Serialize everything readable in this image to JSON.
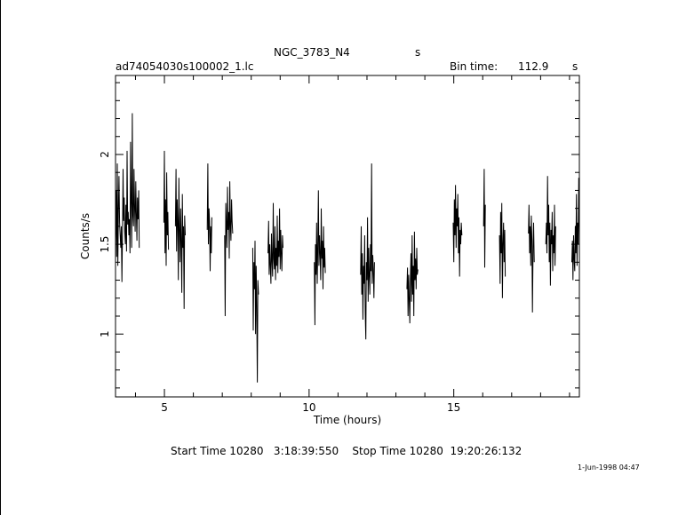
{
  "header": {
    "object_name": "NGC_3783_N4",
    "object_flag": "s",
    "file_name": "ad74054030s100002_1.lc",
    "bin_time_label": "Bin time:",
    "bin_time_value": "112.9",
    "bin_time_unit": "s"
  },
  "footer": {
    "time_range": "Start Time 10280   3:18:39:550    Stop Time 10280  19:20:26:132",
    "date_stamp": "1-Jun-1998 04:47"
  },
  "colors": {
    "line": "#000000",
    "background": "#ffffff"
  },
  "chart_data": {
    "type": "line",
    "title": "NGC_3783_N4",
    "xlabel": "Time (hours)",
    "ylabel": "Counts/s",
    "xlim": [
      3.31,
      19.34
    ],
    "ylim": [
      0.65,
      2.44
    ],
    "x_ticks": [
      5,
      10,
      15
    ],
    "y_ticks": [
      1,
      1.5,
      2
    ],
    "grid": false,
    "series": [
      {
        "segments": [
          {
            "x": [
              3.31,
              3.33,
              3.35,
              3.37,
              3.39,
              3.41,
              3.43,
              3.45,
              3.47,
              3.49,
              3.51,
              3.53,
              3.55,
              3.57,
              3.59,
              3.61,
              3.63,
              3.65,
              3.67,
              3.69,
              3.71,
              3.73,
              3.75,
              3.77,
              3.79,
              3.81,
              3.83,
              3.85,
              3.87,
              3.89,
              3.91,
              3.93,
              3.95,
              3.97,
              3.99,
              4.01,
              4.03,
              4.05,
              4.07,
              4.09,
              4.11,
              4.13
            ],
            "y": [
              1.52,
              1.8,
              1.43,
              1.95,
              1.38,
              1.7,
              1.88,
              1.62,
              1.55,
              1.48,
              1.6,
              1.29,
              1.55,
              1.92,
              1.63,
              1.76,
              1.57,
              1.5,
              1.72,
              1.46,
              2.02,
              1.61,
              1.68,
              1.55,
              1.64,
              1.45,
              2.07,
              1.72,
              1.48,
              2.23,
              1.66,
              1.6,
              1.92,
              1.7,
              1.57,
              1.85,
              1.68,
              1.52,
              1.76,
              1.64,
              1.8,
              1.48
            ]
          },
          {
            "x": [
              4.98,
              5.0,
              5.02,
              5.04,
              5.06,
              5.08,
              5.1,
              5.12,
              5.14
            ],
            "y": [
              1.62,
              2.02,
              1.45,
              1.75,
              1.38,
              1.9,
              1.55,
              1.68,
              1.47
            ]
          },
          {
            "x": [
              5.38,
              5.4,
              5.42,
              5.44,
              5.46,
              5.48,
              5.5,
              5.52,
              5.54,
              5.56,
              5.58,
              5.6,
              5.62,
              5.64,
              5.66,
              5.68,
              5.7,
              5.72
            ],
            "y": [
              1.6,
              1.92,
              1.46,
              1.75,
              1.63,
              1.3,
              1.87,
              1.58,
              1.4,
              1.7,
              1.52,
              1.23,
              1.78,
              1.48,
              1.6,
              1.14,
              1.66,
              1.55
            ]
          },
          {
            "x": [
              6.48,
              6.5,
              6.52,
              6.54,
              6.56,
              6.58,
              6.6,
              6.62,
              6.64
            ],
            "y": [
              1.58,
              1.95,
              1.5,
              1.7,
              1.63,
              1.35,
              1.6,
              1.45,
              1.65
            ]
          },
          {
            "x": [
              7.08,
              7.1,
              7.12,
              7.14,
              7.16,
              7.18,
              7.2,
              7.22,
              7.24,
              7.26,
              7.28,
              7.3,
              7.32,
              7.34,
              7.36
            ],
            "y": [
              1.55,
              1.1,
              1.73,
              1.62,
              1.48,
              1.82,
              1.58,
              1.68,
              1.42,
              1.85,
              1.6,
              1.52,
              1.75,
              1.63,
              1.56
            ]
          },
          {
            "x": [
              8.05,
              8.07,
              8.09,
              8.11,
              8.13,
              8.15,
              8.17,
              8.19,
              8.21,
              8.23,
              8.25
            ],
            "y": [
              1.48,
              1.02,
              1.4,
              1.25,
              1.52,
              1.0,
              1.38,
              1.15,
              0.73,
              1.3,
              1.22
            ]
          },
          {
            "x": [
              8.58,
              8.6,
              8.62,
              8.64,
              8.66,
              8.68,
              8.7,
              8.72,
              8.74,
              8.76,
              8.78,
              8.8,
              8.82,
              8.84,
              8.86,
              8.88,
              8.9,
              8.92,
              8.94,
              8.96,
              8.98,
              9.0,
              9.02,
              9.04,
              9.06,
              9.08,
              9.1
            ],
            "y": [
              1.45,
              1.63,
              1.33,
              1.5,
              1.38,
              1.28,
              1.56,
              1.4,
              1.32,
              1.73,
              1.42,
              1.36,
              1.6,
              1.3,
              1.48,
              1.38,
              1.66,
              1.34,
              1.52,
              1.43,
              1.7,
              1.36,
              1.58,
              1.44,
              1.35,
              1.55,
              1.48
            ]
          },
          {
            "x": [
              10.18,
              10.2,
              10.22,
              10.24,
              10.26,
              10.28,
              10.3,
              10.32,
              10.34,
              10.36,
              10.38,
              10.4,
              10.42,
              10.44,
              10.46,
              10.48,
              10.5,
              10.52,
              10.54,
              10.56
            ],
            "y": [
              1.4,
              1.05,
              1.5,
              1.33,
              1.62,
              1.28,
              1.48,
              1.8,
              1.38,
              1.55,
              1.45,
              1.3,
              1.7,
              1.42,
              1.52,
              1.25,
              1.6,
              1.37,
              1.48,
              1.34
            ]
          },
          {
            "x": [
              11.78,
              11.8,
              11.82,
              11.84,
              11.86,
              11.88,
              11.9,
              11.92,
              11.94,
              11.96,
              11.98,
              12.0,
              12.02,
              12.04,
              12.06,
              12.08,
              12.1,
              12.12,
              12.14,
              12.16,
              12.18,
              12.2,
              12.22,
              12.24,
              12.26
            ],
            "y": [
              1.33,
              1.6,
              1.22,
              1.45,
              1.08,
              1.38,
              1.28,
              1.55,
              1.12,
              0.97,
              1.4,
              1.3,
              1.65,
              1.18,
              1.48,
              1.32,
              1.22,
              1.5,
              1.35,
              1.95,
              1.28,
              1.44,
              1.36,
              1.2,
              1.4
            ]
          },
          {
            "x": [
              13.38,
              13.4,
              13.42,
              13.44,
              13.46,
              13.48,
              13.5,
              13.52,
              13.54,
              13.56,
              13.58,
              13.6,
              13.62,
              13.64,
              13.66,
              13.68,
              13.7,
              13.72,
              13.74,
              13.76
            ],
            "y": [
              1.25,
              1.37,
              1.1,
              1.33,
              1.2,
              1.06,
              1.3,
              1.45,
              1.18,
              1.55,
              1.22,
              1.38,
              1.1,
              1.57,
              1.3,
              1.42,
              1.25,
              1.48,
              1.33,
              1.36
            ]
          },
          {
            "x": [
              14.98,
              15.0,
              15.02,
              15.04,
              15.06,
              15.08,
              15.1,
              15.12,
              15.14,
              15.16,
              15.18,
              15.2,
              15.22,
              15.24,
              15.26,
              15.28
            ],
            "y": [
              1.62,
              1.4,
              1.75,
              1.55,
              1.83,
              1.48,
              1.7,
              1.6,
              1.78,
              1.45,
              1.65,
              1.32,
              1.58,
              1.5,
              1.62,
              1.55
            ]
          },
          {
            "x": [
              16.03,
              16.05,
              16.07,
              16.09
            ],
            "y": [
              1.6,
              1.92,
              1.37,
              1.72
            ]
          },
          {
            "x": [
              16.58,
              16.6,
              16.62,
              16.64,
              16.66,
              16.68,
              16.7,
              16.72,
              16.74,
              16.76,
              16.78
            ],
            "y": [
              1.55,
              1.28,
              1.68,
              1.45,
              1.73,
              1.2,
              1.5,
              1.62,
              1.4,
              1.58,
              1.32
            ]
          },
          {
            "x": [
              17.58,
              17.6,
              17.62,
              17.64,
              17.66,
              17.68,
              17.7,
              17.72,
              17.74,
              17.76,
              17.78
            ],
            "y": [
              1.56,
              1.72,
              1.45,
              1.6,
              1.38,
              1.66,
              1.52,
              1.12,
              1.48,
              1.62,
              1.4
            ]
          },
          {
            "x": [
              18.18,
              18.2,
              18.22,
              18.24,
              18.26,
              18.28,
              18.3,
              18.32,
              18.34,
              18.36,
              18.38,
              18.4,
              18.42,
              18.44,
              18.46,
              18.48,
              18.5,
              18.52
            ],
            "y": [
              1.5,
              1.62,
              1.45,
              1.88,
              1.55,
              1.72,
              1.4,
              1.62,
              1.27,
              1.58,
              1.5,
              1.68,
              1.35,
              1.55,
              1.45,
              1.72,
              1.38,
              1.6
            ]
          },
          {
            "x": [
              19.08,
              19.1,
              19.12,
              19.14,
              19.16,
              19.18,
              19.2,
              19.22,
              19.24,
              19.26,
              19.28,
              19.3,
              19.32,
              19.34
            ],
            "y": [
              1.4,
              1.52,
              1.3,
              1.55,
              1.42,
              1.35,
              1.6,
              1.45,
              1.78,
              1.38,
              1.62,
              1.5,
              1.87,
              1.55
            ]
          }
        ]
      }
    ]
  }
}
